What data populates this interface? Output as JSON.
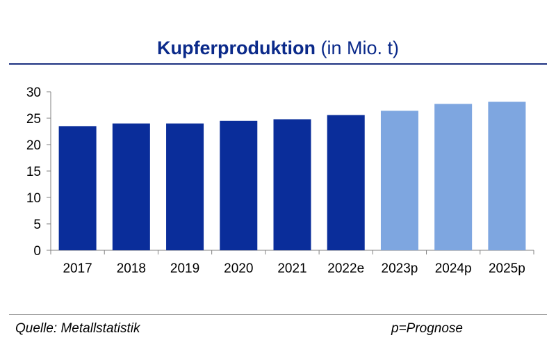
{
  "header": {
    "title_bold": "Kupferproduktion",
    "title_rest": "(in Mio. t)"
  },
  "footer": {
    "source": "Quelle: Metallstatistik",
    "note": "p=Prognose"
  },
  "chart_data": {
    "type": "bar",
    "title": "Kupferproduktion (in Mio. t)",
    "categories": [
      "2017",
      "2018",
      "2019",
      "2020",
      "2021",
      "2022e",
      "2023p",
      "2024p",
      "2025p"
    ],
    "values": [
      23.5,
      24.0,
      24.0,
      24.5,
      24.8,
      25.6,
      26.4,
      27.7,
      28.1
    ],
    "forecast": [
      false,
      false,
      false,
      false,
      false,
      false,
      true,
      true,
      true
    ],
    "ylim": [
      0,
      30
    ],
    "yticks": [
      0,
      5,
      10,
      15,
      20,
      25,
      30
    ],
    "grid": false,
    "legend": "none",
    "colors": {
      "actual": "#0a2d9a",
      "forecast": "#7ea6e0",
      "axis": "#808080"
    }
  }
}
